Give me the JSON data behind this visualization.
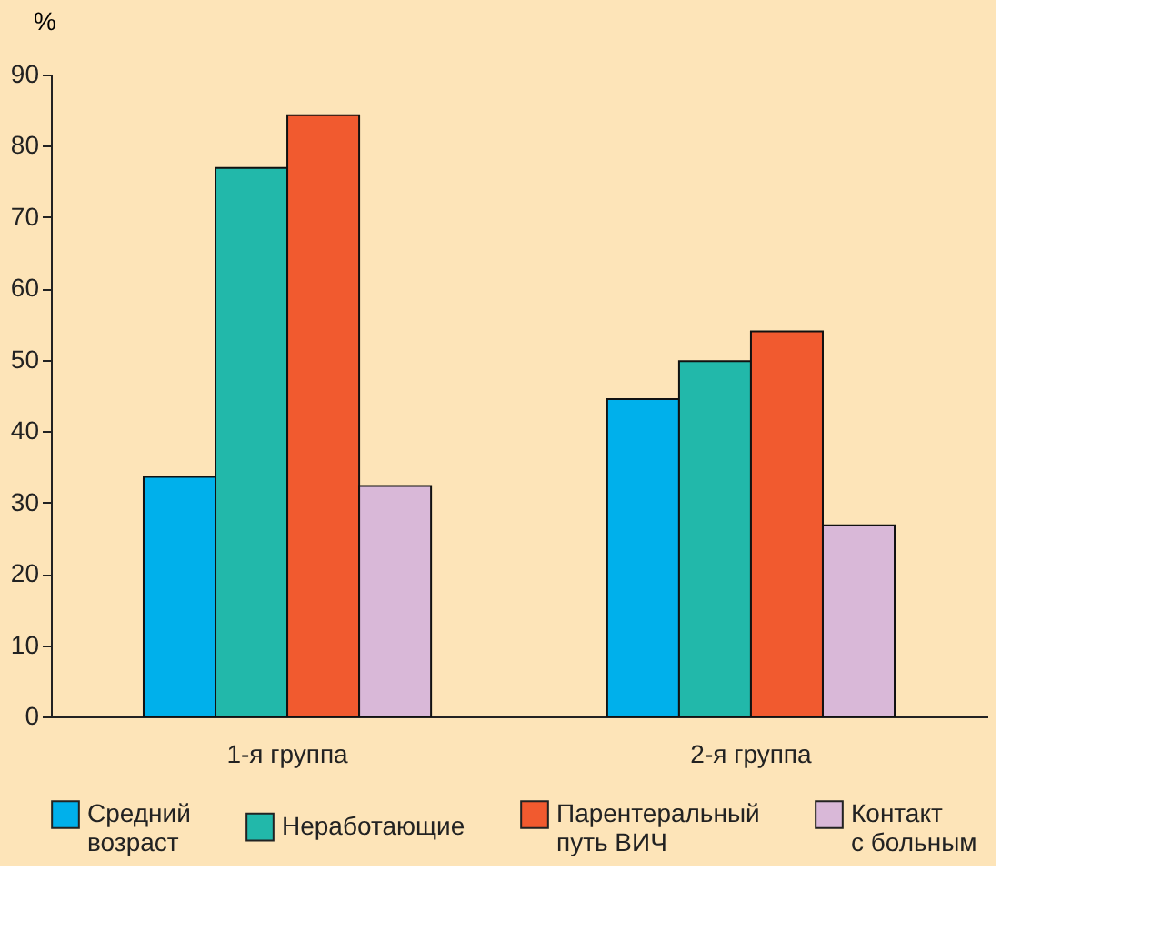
{
  "chart_data": {
    "type": "bar",
    "ylabel": "%",
    "categories": [
      "1-я группа",
      "2-я группа"
    ],
    "series": [
      {
        "name": "Средний\nвозраст",
        "color": "#00b0eb",
        "values": [
          33.6,
          44.5
        ]
      },
      {
        "name": "Неработающие",
        "color": "#22b8aa",
        "values": [
          76.9,
          49.8
        ]
      },
      {
        "name": "Парентеральный\nпуть ВИЧ",
        "color": "#f15a2f",
        "values": [
          84.3,
          54.0
        ]
      },
      {
        "name": "Контакт\nс больным",
        "color": "#d9b8d8",
        "values": [
          32.3,
          26.8
        ]
      }
    ],
    "ylim": [
      0,
      90
    ],
    "yticks": [
      0,
      10,
      20,
      30,
      40,
      50,
      60,
      70,
      80,
      90
    ],
    "grid": false,
    "legend": "bottom"
  }
}
